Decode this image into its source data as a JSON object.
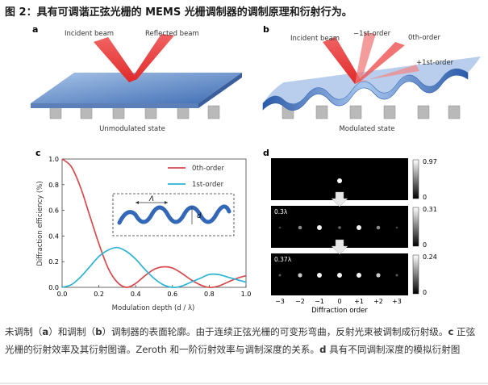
{
  "figure_title": "图 2：具有可调谐正弦光栅的 MEMS 光栅调制器的调制原理和衍射行为。",
  "panel_a": {
    "label": "a",
    "incident_label": "Incident beam",
    "reflected_label": "Reflected beam",
    "state_label": "Unmodulated state"
  },
  "panel_b": {
    "label": "b",
    "incident_label": "Incident beam",
    "minus1_label": "−1st-order",
    "zero_label": "0th-order",
    "plus1_label": "+1st-order",
    "state_label": "Modulated state"
  },
  "panel_c": {
    "label": "c",
    "inset_lambda": "Λ",
    "inset_d": "d"
  },
  "panel_d": {
    "label": "d",
    "rows": [
      {
        "label": "",
        "colorbar_max": "0.97",
        "colorbar_min": "0"
      },
      {
        "label": "0.3λ",
        "colorbar_max": "0.31",
        "colorbar_min": "0"
      },
      {
        "label": "0.37λ",
        "colorbar_max": "0.24",
        "colorbar_min": "0"
      }
    ],
    "x_ticks": [
      "−3",
      "−2",
      "−1",
      "0",
      "+1",
      "+2",
      "+3"
    ],
    "x_label": "Diffraction order"
  },
  "caption": {
    "p1": "未调制（",
    "a": "a",
    "p2": "）和调制（",
    "b": "b",
    "p3": "）调制器的表面轮廓。由于连续正弦光栅的可变形弯曲，反射光束被调制成衍射级。",
    "c": "c",
    "p4": " 正弦光栅的衍射效率及其衍射图谱。Zeroth 和一阶衍射效率与调制深度的关系。",
    "d": "d",
    "p5": " 具有不同调制深度的模拟衍射图"
  },
  "chart_data": {
    "type": "line",
    "title": "",
    "xlabel": "Modulation depth (d / λ)",
    "ylabel": "Diffraction efficiency (%)",
    "xlim": [
      0,
      1.0
    ],
    "ylim": [
      0,
      1.0
    ],
    "x_ticks": [
      "0.0",
      "0.2",
      "0.4",
      "0.6",
      "0.8",
      "1.0"
    ],
    "y_ticks": [
      "0.0",
      "0.2",
      "0.4",
      "0.6",
      "0.8",
      "1.0"
    ],
    "legend_position": "top-right",
    "series": [
      {
        "name": "0th-order",
        "color": "#d9484c",
        "x": [
          0.0,
          0.05,
          0.1,
          0.15,
          0.2,
          0.25,
          0.3,
          0.35,
          0.4,
          0.45,
          0.5,
          0.55,
          0.6,
          0.65,
          0.7,
          0.75,
          0.8,
          0.85,
          0.9,
          0.95,
          1.0
        ],
        "values": [
          1.0,
          0.94,
          0.78,
          0.56,
          0.34,
          0.15,
          0.04,
          0.0,
          0.03,
          0.09,
          0.14,
          0.16,
          0.15,
          0.11,
          0.06,
          0.02,
          0.0,
          0.01,
          0.04,
          0.07,
          0.09
        ]
      },
      {
        "name": "1st-order",
        "color": "#2bb3d6",
        "x": [
          0.0,
          0.05,
          0.1,
          0.15,
          0.2,
          0.25,
          0.3,
          0.35,
          0.4,
          0.45,
          0.5,
          0.55,
          0.6,
          0.65,
          0.7,
          0.75,
          0.8,
          0.85,
          0.9,
          0.95,
          1.0
        ],
        "values": [
          0.0,
          0.02,
          0.08,
          0.16,
          0.24,
          0.29,
          0.31,
          0.28,
          0.22,
          0.14,
          0.07,
          0.02,
          0.0,
          0.01,
          0.04,
          0.07,
          0.1,
          0.1,
          0.08,
          0.06,
          0.04
        ]
      }
    ]
  }
}
